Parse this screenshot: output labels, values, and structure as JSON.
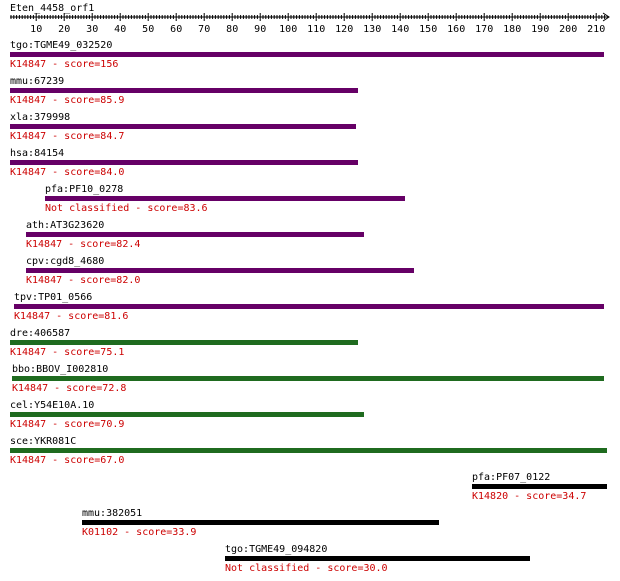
{
  "query": {
    "name": "Eten_4458_orf1"
  },
  "ruler": {
    "labels": [
      "10",
      "20",
      "30",
      "40",
      "50",
      "60",
      "70",
      "80",
      "90",
      "100",
      "110",
      "120",
      "130",
      "140",
      "150",
      "160",
      "170",
      "180",
      "190",
      "200",
      "210"
    ]
  },
  "colors": {
    "purple": "#660066",
    "green": "#1f6b1f",
    "black": "#000000",
    "red": "#cc0000"
  },
  "hits": [
    {
      "name": "tgo:TGME49_032520",
      "annotation": "K14847 - score=156",
      "color": "purple"
    },
    {
      "name": "mmu:67239",
      "annotation": "K14847 - score=85.9",
      "color": "purple"
    },
    {
      "name": "xla:379998",
      "annotation": "K14847 - score=84.7",
      "color": "purple"
    },
    {
      "name": "hsa:84154",
      "annotation": "K14847 - score=84.0",
      "color": "purple"
    },
    {
      "name": "pfa:PF10_0278",
      "annotation": "Not classified - score=83.6",
      "color": "purple"
    },
    {
      "name": "ath:AT3G23620",
      "annotation": "K14847 - score=82.4",
      "color": "purple"
    },
    {
      "name": "cpv:cgd8_4680",
      "annotation": "K14847 - score=82.0",
      "color": "purple"
    },
    {
      "name": "tpv:TP01_0566",
      "annotation": "K14847 - score=81.6",
      "color": "purple"
    },
    {
      "name": "dre:406587",
      "annotation": "K14847 - score=75.1",
      "color": "green"
    },
    {
      "name": "bbo:BBOV_I002810",
      "annotation": "K14847 - score=72.8",
      "color": "green"
    },
    {
      "name": "cel:Y54E10A.10",
      "annotation": "K14847 - score=70.9",
      "color": "green"
    },
    {
      "name": "sce:YKR081C",
      "annotation": "K14847 - score=67.0",
      "color": "green"
    },
    {
      "name": "pfa:PF07_0122",
      "annotation": "K14820 - score=34.7",
      "color": "black"
    },
    {
      "name": "mmu:382051",
      "annotation": "K01102 - score=33.9",
      "color": "black"
    },
    {
      "name": "tgo:TGME49_094820",
      "annotation": "Not classified - score=30.0",
      "color": "black"
    }
  ]
}
